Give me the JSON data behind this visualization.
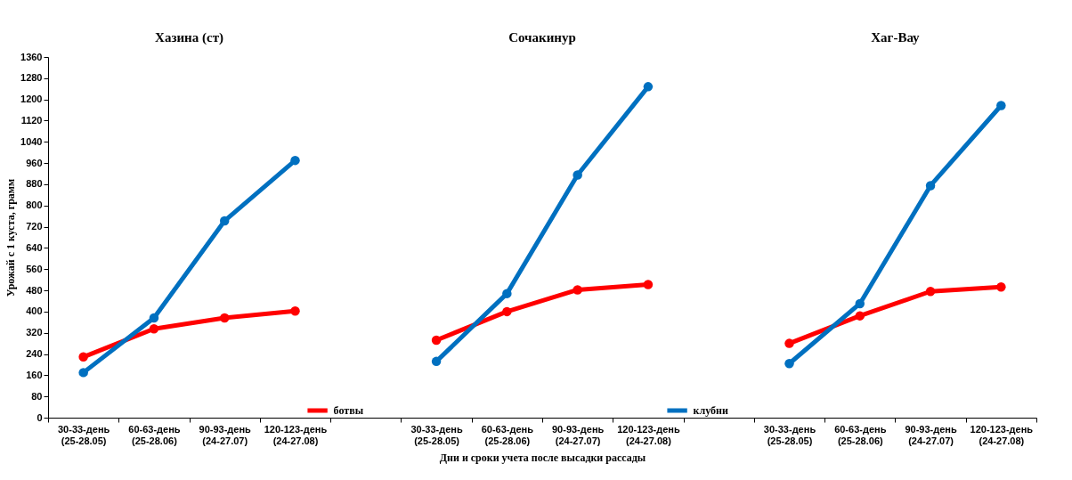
{
  "chart_data": {
    "type": "line",
    "categories": [
      "30-33-день\n(25-28.05)",
      "60-63-день\n(25-28.06)",
      "90-93-день\n(24-27.07)",
      "120-123-день\n(24-27.08)",
      null,
      "30-33-день\n(25-28.05)",
      "60-63-день\n(25-28.06)",
      "90-93-день\n(24-27.07)",
      "120-123-день\n(24-27.08)",
      null,
      "30-33-день\n(25-28.05)",
      "60-63-день\n(25-28.06)",
      "90-93-день\n(24-27.07)",
      "120-123-день\n(24-27.08)"
    ],
    "series": [
      {
        "name": "ботвы",
        "color": "#ff0000",
        "values": [
          229,
          335,
          376,
          402,
          null,
          292,
          400,
          482,
          502,
          null,
          280,
          384,
          476,
          493
        ]
      },
      {
        "name": "клубни",
        "color": "#0070c0",
        "values": [
          170,
          376,
          742,
          970,
          null,
          212,
          468,
          915,
          1248,
          null,
          204,
          430,
          875,
          1177
        ]
      }
    ],
    "annotations": [
      "Хазина (ст)",
      "Сочакинур",
      "Хаг-Вау"
    ],
    "xlabel": "Дни и сроки учета после высадки рассады",
    "ylabel": "Урожай с 1 куста, грамм",
    "ylim": [
      0,
      1360
    ],
    "yticks": [
      0,
      80,
      160,
      240,
      320,
      400,
      480,
      560,
      640,
      720,
      800,
      880,
      960,
      1040,
      1120,
      1200,
      1280,
      1360
    ],
    "marker": "circle",
    "line_style": "solid",
    "grid": false,
    "legend": "bottom"
  }
}
